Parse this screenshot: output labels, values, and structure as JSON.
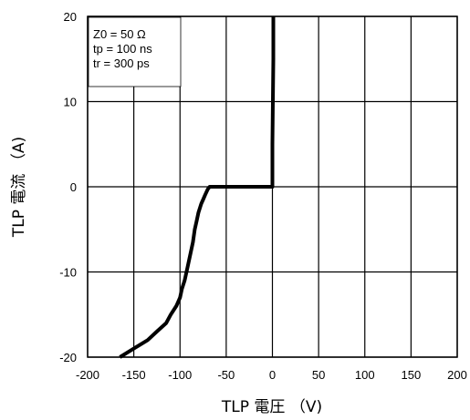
{
  "chart_data": {
    "type": "line",
    "xlabel": "TLP 電圧 （V)",
    "ylabel": "TLP 電流 （A)",
    "xlim": [
      -200,
      200
    ],
    "ylim": [
      -20,
      20
    ],
    "x_ticks": [
      "-200",
      "-150",
      "-100",
      "-50",
      "0",
      "50",
      "100",
      "150",
      "200"
    ],
    "y_ticks": [
      "20",
      "10",
      "0",
      "-10",
      "-20"
    ],
    "x_tick_values": [
      -200,
      -150,
      -100,
      -50,
      0,
      50,
      100,
      150,
      200
    ],
    "y_tick_values": [
      20,
      10,
      0,
      -10,
      -20
    ],
    "grid": true,
    "line_color": "#000000",
    "annotation": {
      "position": "top-left",
      "lines": [
        "Z0 = 50 Ω",
        "tp = 100 ns",
        "tr = 300 ps"
      ]
    },
    "series": [
      {
        "x": [
          -165,
          -150,
          -135,
          -125,
          -115,
          -110,
          -104,
          -100,
          -98,
          -95,
          -92,
          -89,
          -86,
          -84,
          -82,
          -80,
          -77,
          -75,
          -73,
          -70,
          -68,
          0,
          0,
          1,
          1
        ],
        "y": [
          -20,
          -19,
          -18,
          -17,
          -16,
          -15,
          -14,
          -13,
          -12,
          -11,
          -9.5,
          -8,
          -6.5,
          -5,
          -4,
          -3,
          -2,
          -1.5,
          -1,
          -0.3,
          0,
          0,
          5,
          15,
          20
        ]
      }
    ]
  }
}
